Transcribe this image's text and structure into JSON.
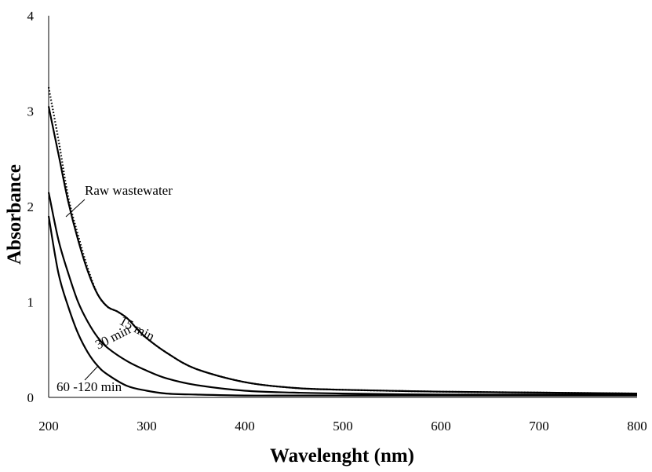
{
  "chart_data": {
    "type": "line",
    "title": "",
    "xlabel": "Wavelenght (nm)",
    "ylabel": "Absorbance",
    "xlim": [
      200,
      800
    ],
    "ylim": [
      0,
      4
    ],
    "xticks": [
      "200",
      "300",
      "400",
      "500",
      "600",
      "700",
      "800"
    ],
    "yticks": [
      "0",
      "1",
      "2",
      "3",
      "4"
    ],
    "grid": false,
    "legend": "none",
    "series": [
      {
        "name": "Raw wastewater",
        "style": "dotted",
        "x": [
          200,
          210,
          220,
          230,
          240,
          250,
          260,
          270,
          280,
          290,
          300,
          320,
          350,
          400,
          450,
          500,
          600,
          700,
          800
        ],
        "y": [
          3.25,
          2.7,
          2.1,
          1.7,
          1.35,
          1.08,
          0.95,
          0.9,
          0.83,
          0.72,
          0.62,
          0.47,
          0.3,
          0.16,
          0.1,
          0.08,
          0.06,
          0.05,
          0.04
        ]
      },
      {
        "name": "15 min",
        "style": "solid",
        "x": [
          200,
          210,
          220,
          230,
          240,
          250,
          260,
          270,
          280,
          290,
          300,
          320,
          350,
          400,
          450,
          500,
          600,
          700,
          800
        ],
        "y": [
          3.05,
          2.55,
          2.05,
          1.65,
          1.32,
          1.08,
          0.95,
          0.9,
          0.83,
          0.72,
          0.62,
          0.47,
          0.3,
          0.16,
          0.1,
          0.08,
          0.06,
          0.05,
          0.04
        ]
      },
      {
        "name": "30 min",
        "style": "solid",
        "x": [
          200,
          210,
          220,
          230,
          240,
          250,
          260,
          280,
          300,
          320,
          350,
          400,
          450,
          500,
          600,
          700,
          800
        ],
        "y": [
          2.15,
          1.65,
          1.3,
          1.0,
          0.79,
          0.63,
          0.52,
          0.38,
          0.28,
          0.2,
          0.13,
          0.07,
          0.05,
          0.04,
          0.03,
          0.03,
          0.03
        ]
      },
      {
        "name": "60 -120 min",
        "style": "solid",
        "x": [
          200,
          210,
          220,
          230,
          240,
          250,
          260,
          280,
          300,
          320,
          350,
          400,
          450,
          500,
          600,
          700,
          800
        ],
        "y": [
          1.9,
          1.3,
          0.95,
          0.67,
          0.47,
          0.33,
          0.24,
          0.12,
          0.07,
          0.04,
          0.03,
          0.02,
          0.02,
          0.02,
          0.02,
          0.02,
          0.02
        ]
      }
    ],
    "annotations": [
      {
        "text": "Raw wastewater",
        "series": "Raw wastewater",
        "anchor_x": 222,
        "anchor_y": 1.93
      },
      {
        "text": "15 min",
        "series": "15 min",
        "anchor_x": 260,
        "anchor_y": 0.95
      },
      {
        "text": "30 min",
        "series": "30 min",
        "anchor_x": 250,
        "anchor_y": 0.63
      },
      {
        "text": "60 -120 min",
        "series": "60 -120 min",
        "anchor_x": 250,
        "anchor_y": 0.33
      }
    ]
  }
}
